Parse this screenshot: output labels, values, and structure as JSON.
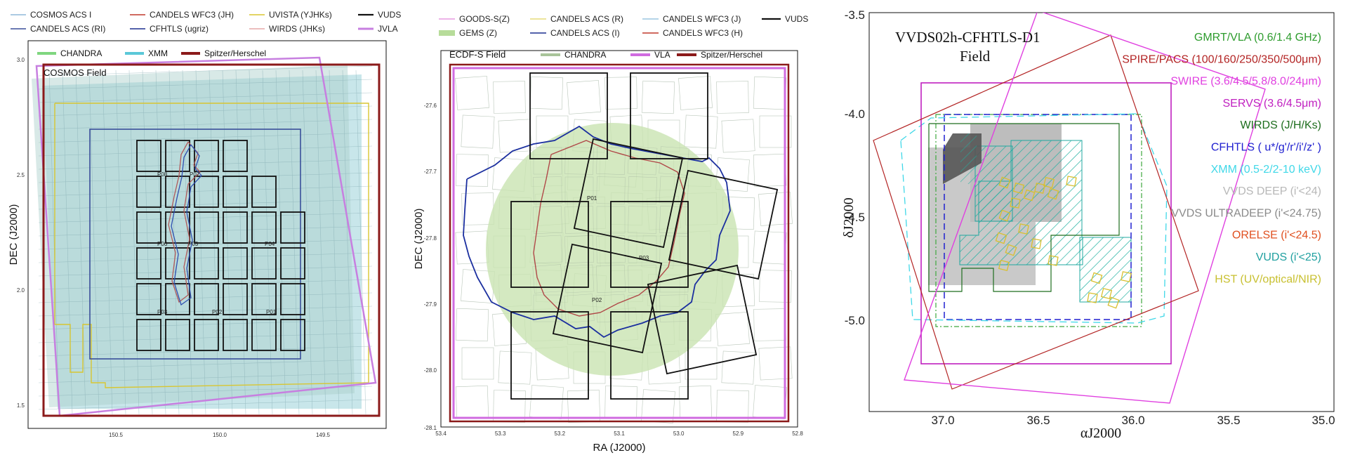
{
  "panels": [
    {
      "id": "cosmos",
      "frame_label": "COSMOS Field",
      "ylabel": "DEC (J2000)",
      "xlabel": "",
      "xticks": [
        "150.5",
        "150.0",
        "149.5"
      ],
      "yticks": [
        "3.0",
        "2.5",
        "2.0",
        "1.5"
      ],
      "legend_top": [
        {
          "label": "COSMOS ACS I",
          "color": "#8fb8d8"
        },
        {
          "label": "CANDELS WFC3 (JH)",
          "color": "#c0392b"
        },
        {
          "label": "UVISTA (YJHKs)",
          "color": "#d8c631"
        },
        {
          "label": "VUDS",
          "color": "#111111"
        },
        {
          "label": "CANDELS ACS (RI)",
          "color": "#3a4f9a"
        },
        {
          "label": "CFHTLS (ugriz)",
          "color": "#1b2f8f"
        },
        {
          "label": "WIRDS (JHKs)",
          "color": "#e6a8a8"
        },
        {
          "label": "JVLA",
          "color": "#c77fe0"
        }
      ],
      "legend_inner": [
        {
          "label": "CHANDRA",
          "color": "#7fd67f"
        },
        {
          "label": "XMM",
          "color": "#5bc8d8"
        },
        {
          "label": "Spitzer/Herschel",
          "color": "#8b1a1a"
        }
      ],
      "pointing_labels": [
        "P08",
        "P07",
        "P06",
        "P05",
        "P04",
        "P03",
        "P02",
        "P01"
      ]
    },
    {
      "id": "ecdfs",
      "frame_label": "ECDF-S Field",
      "ylabel": "DEC (J2000)",
      "xlabel": "RA (J2000)",
      "xticks": [
        "53.4",
        "53.3",
        "53.2",
        "53.1",
        "53.0",
        "52.9",
        "52.8"
      ],
      "yticks": [
        "-27.6",
        "-27.7",
        "-27.8",
        "-27.9",
        "-28.0",
        "-28.1"
      ],
      "legend_top": [
        {
          "label": "GOODS-S(Z)",
          "color": "#e79ae0"
        },
        {
          "label": "CANDELS ACS (R)",
          "color": "#e6dc7a"
        },
        {
          "label": "CANDELS WFC3 (J)",
          "color": "#9cc6e0"
        },
        {
          "label": "VUDS",
          "color": "#111111"
        },
        {
          "label": "GEMS (Z)",
          "color": "#b7dc9a"
        },
        {
          "label": "CANDELS ACS (I)",
          "color": "#1b2f8f"
        },
        {
          "label": "CANDELS WFC3 (H)",
          "color": "#c0392b"
        }
      ],
      "legend_inner": [
        {
          "label": "CHANDRA",
          "color": "#a9c49a"
        },
        {
          "label": "VLA",
          "color": "#d06be0"
        },
        {
          "label": "Spitzer/Herschel",
          "color": "#8b1a1a"
        }
      ],
      "pointing_labels": [
        "P01",
        "P03",
        "P02"
      ]
    },
    {
      "id": "vvds",
      "title_line1": "VVDS02h-CFHTLS-D1",
      "title_line2": "Field",
      "ylabel": "δJ2000",
      "xlabel": "αJ2000",
      "xticks": [
        "37.0",
        "36.5",
        "36.0",
        "35.5",
        "35.0"
      ],
      "yticks": [
        "-3.5",
        "-4.0",
        "-4.5",
        "-5.0"
      ],
      "legend_right": [
        {
          "label": "GMRT/VLA (0.6/1.4 GHz)",
          "color": "#2e9c2e"
        },
        {
          "label": "SPIRE/PACS (100/160/250/350/500μm)",
          "color": "#b32424"
        },
        {
          "label": "SWIRE (3.6/4.5/5.8/8.0/24μm)",
          "color": "#e040e0"
        },
        {
          "label": "SERVS (3.6/4.5μm)",
          "color": "#c020c0"
        },
        {
          "label": "WIRDS (J/H/Ks)",
          "color": "#1e6e1e"
        },
        {
          "label": "CFHTLS ( u*/g'/r'/i'/z' )",
          "color": "#2020d0"
        },
        {
          "label": "XMM (0.5-2/2-10 keV)",
          "color": "#40d8e8"
        },
        {
          "label": "VVDS DEEP (i'<24)",
          "color": "#b8b8b8"
        },
        {
          "label": "VVDS ULTRADEEP (i'<24.75)",
          "color": "#8a8a8a"
        },
        {
          "label": "ORELSE (i'<24.5)",
          "color": "#e05020"
        },
        {
          "label": "VUDS (i'<25)",
          "color": "#20a0a0"
        },
        {
          "label": "HST (UV/optical/NIR)",
          "color": "#c8c030"
        }
      ]
    }
  ],
  "chart_data": [
    {
      "type": "diagram",
      "title": "COSMOS Field",
      "xlabel": "",
      "ylabel": "DEC (J2000)",
      "xlim": [
        150.8,
        149.2
      ],
      "ylim": [
        1.45,
        3.05
      ],
      "pointings": [
        "P01",
        "P02",
        "P03",
        "P04",
        "P05",
        "P06",
        "P07",
        "P08"
      ]
    },
    {
      "type": "diagram",
      "title": "ECDF-S Field",
      "xlabel": "RA (J2000)",
      "ylabel": "DEC (J2000)",
      "xlim": [
        53.4,
        52.8
      ],
      "ylim": [
        -28.1,
        -27.55
      ],
      "pointings": [
        "P01",
        "P02",
        "P03"
      ]
    },
    {
      "type": "diagram",
      "title": "VVDS02h-CFHTLS-D1 Field",
      "xlabel": "αJ2000",
      "ylabel": "δJ2000",
      "xlim": [
        37.4,
        34.9
      ],
      "ylim": [
        -5.4,
        -3.5
      ]
    }
  ]
}
